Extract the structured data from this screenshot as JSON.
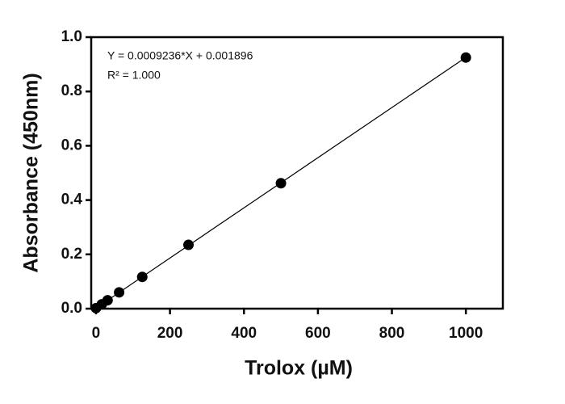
{
  "chart_data": {
    "type": "scatter",
    "x_label": "Trolox (µM)",
    "y_label": "Absorbance (450nm)",
    "annotations": [
      "Y = 0.0009236*X + 0.001896",
      "R² = 1.000"
    ],
    "x": [
      0,
      15.625,
      31.25,
      62.5,
      125,
      250,
      500,
      1000
    ],
    "values": [
      0.002,
      0.016,
      0.031,
      0.06,
      0.117,
      0.235,
      0.462,
      0.925
    ],
    "color": "#000000",
    "fit": {
      "slope": 0.0009236,
      "intercept": 0.001896
    },
    "xlim": [
      -13,
      1100
    ],
    "xticks": [
      0,
      200,
      400,
      600,
      800,
      1000
    ],
    "ylim": [
      0,
      1.0
    ],
    "yticks": [
      {
        "value": 0,
        "label": "0.0"
      },
      {
        "value": 0.2,
        "label": "0.2"
      },
      {
        "value": 0.4,
        "label": "0.4"
      },
      {
        "value": 0.6,
        "label": "0.6"
      },
      {
        "value": 0.8,
        "label": "0.8"
      },
      {
        "value": 1.0,
        "label": "1.0"
      }
    ]
  }
}
